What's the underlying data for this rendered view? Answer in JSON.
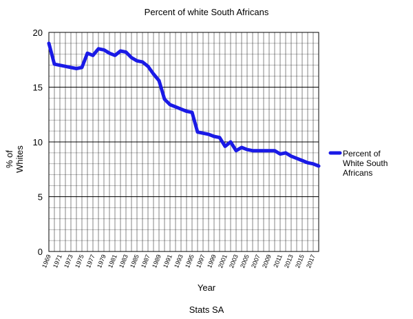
{
  "chart_data": {
    "type": "line",
    "title": "Percent of white South Africans",
    "xlabel": "Year",
    "ylabel": "% of Whites",
    "ylabel_lines": [
      "% of",
      "Whites"
    ],
    "footer": "Stats SA",
    "ylim": [
      0,
      20
    ],
    "xlim": [
      1969,
      2018
    ],
    "yticks": [
      0,
      5,
      10,
      15,
      20
    ],
    "xtick_labels": [
      "1969",
      "1971",
      "1973",
      "1975",
      "1977",
      "1979",
      "1981",
      "1983",
      "1985",
      "1987",
      "1989",
      "1991",
      "1993",
      "1995",
      "1997",
      "1999",
      "2001",
      "2003",
      "2005",
      "2007",
      "2009",
      "2011",
      "2013",
      "2015",
      "2017"
    ],
    "grid": true,
    "legend_position": "right",
    "series": [
      {
        "name": "Percent of White South Africans",
        "legend_lines": [
          "Percent of",
          "White South",
          "Africans"
        ],
        "color": "#1a1ae6",
        "x": [
          1969,
          1970,
          1971,
          1972,
          1973,
          1974,
          1975,
          1976,
          1977,
          1978,
          1979,
          1980,
          1981,
          1982,
          1983,
          1984,
          1985,
          1986,
          1987,
          1988,
          1989,
          1990,
          1991,
          1992,
          1993,
          1994,
          1995,
          1996,
          1997,
          1998,
          1999,
          2000,
          2001,
          2002,
          2003,
          2004,
          2005,
          2006,
          2007,
          2008,
          2009,
          2010,
          2011,
          2012,
          2013,
          2014,
          2015,
          2016,
          2017,
          2018
        ],
        "values": [
          19.0,
          17.1,
          17.0,
          16.9,
          16.8,
          16.7,
          16.8,
          18.1,
          17.9,
          18.5,
          18.4,
          18.1,
          17.9,
          18.3,
          18.2,
          17.7,
          17.4,
          17.3,
          16.9,
          16.2,
          15.6,
          13.9,
          13.4,
          13.2,
          13.0,
          12.8,
          12.7,
          10.9,
          10.8,
          10.7,
          10.5,
          10.4,
          9.6,
          10.0,
          9.2,
          9.5,
          9.3,
          9.2,
          9.2,
          9.2,
          9.2,
          9.2,
          8.9,
          9.0,
          8.7,
          8.5,
          8.3,
          8.1,
          8.0,
          7.8
        ]
      }
    ]
  }
}
